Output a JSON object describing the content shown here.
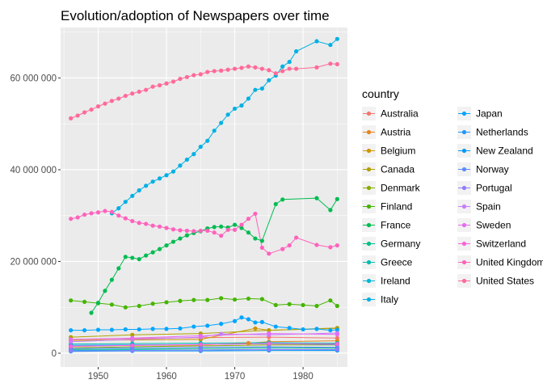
{
  "chart_data": {
    "type": "line",
    "title": "Evolution/adoption of Newspapers over time",
    "xlabel": "",
    "ylabel": "",
    "xlim": [
      1944.5,
      1986.5
    ],
    "ylim": [
      -3000000,
      71000000
    ],
    "x_ticks": [
      1950,
      1960,
      1970,
      1980
    ],
    "x_tick_labels": [
      "1950",
      "1960",
      "1970",
      "1980"
    ],
    "y_ticks": [
      0,
      20000000,
      40000000,
      60000000
    ],
    "y_tick_labels": [
      "0",
      "20 000 000",
      "40 000 000",
      "60 000 000"
    ],
    "legend_title": "country",
    "legend_position": "right",
    "grid": true,
    "series": [
      {
        "name": "Australia",
        "color": "#F8766D",
        "x": [
          1946,
          1955,
          1965,
          1975,
          1985
        ],
        "y": [
          3000000,
          3200000,
          3400000,
          3500000,
          3300000
        ]
      },
      {
        "name": "Austria",
        "color": "#E7851E",
        "x": [
          1946,
          1955,
          1965,
          1972,
          1975,
          1985
        ],
        "y": [
          1500000,
          1700000,
          1800000,
          2200000,
          2500000,
          2700000
        ]
      },
      {
        "name": "Belgium",
        "color": "#D09400",
        "x": [
          1946,
          1955,
          1965,
          1973,
          1975,
          1985
        ],
        "y": [
          2800000,
          2900000,
          3000000,
          5400000,
          5000000,
          5400000
        ]
      },
      {
        "name": "Canada",
        "color": "#B2A100",
        "x": [
          1946,
          1955,
          1965,
          1975,
          1985
        ],
        "y": [
          3500000,
          4000000,
          4300000,
          5000000,
          5500000
        ]
      },
      {
        "name": "Denmark",
        "color": "#89AC00",
        "x": [
          1946,
          1955,
          1965,
          1975,
          1985
        ],
        "y": [
          1200000,
          1400000,
          1600000,
          1800000,
          1800000
        ]
      },
      {
        "name": "Finland",
        "color": "#45B500",
        "x": [
          1946,
          1948,
          1950,
          1952,
          1954,
          1956,
          1958,
          1960,
          1962,
          1964,
          1966,
          1968,
          1970,
          1972,
          1974,
          1976,
          1978,
          1980,
          1982,
          1984,
          1985
        ],
        "y": [
          11500000,
          11200000,
          10900000,
          10600000,
          10000000,
          10300000,
          10800000,
          11100000,
          11400000,
          11600000,
          11600000,
          12000000,
          11700000,
          11900000,
          11800000,
          10500000,
          10700000,
          10500000,
          10300000,
          11500000,
          10300000
        ]
      },
      {
        "name": "France",
        "color": "#00BC51",
        "x": [
          1949,
          1950,
          1951,
          1952,
          1953,
          1954,
          1955,
          1956,
          1957,
          1958,
          1959,
          1960,
          1961,
          1962,
          1963,
          1964,
          1965,
          1966,
          1967,
          1968,
          1969,
          1970,
          1971,
          1972,
          1973,
          1974,
          1976,
          1977,
          1982,
          1984,
          1985
        ],
        "y": [
          8800000,
          11000000,
          13600000,
          16000000,
          18500000,
          21000000,
          20800000,
          20500000,
          21300000,
          22000000,
          22700000,
          23500000,
          24300000,
          25000000,
          25700000,
          26200000,
          26600000,
          27200000,
          27500000,
          27600000,
          27400000,
          28000000,
          27300000,
          26300000,
          25000000,
          24500000,
          32500000,
          33500000,
          33800000,
          31200000,
          33600000
        ]
      },
      {
        "name": "Germany",
        "color": "#00C087",
        "x": [
          1946,
          1955,
          1965,
          1975,
          1985
        ],
        "y": [
          800000,
          900000,
          1000000,
          1200000,
          1100000
        ]
      },
      {
        "name": "Greece",
        "color": "#00BDB2",
        "x": [
          1946,
          1955,
          1965,
          1975,
          1985
        ],
        "y": [
          2000000,
          2100000,
          2200000,
          2300000,
          2200000
        ]
      },
      {
        "name": "Ireland",
        "color": "#00B7D5",
        "x": [
          1946,
          1955,
          1965,
          1975,
          1985
        ],
        "y": [
          600000,
          700000,
          700000,
          800000,
          700000
        ]
      },
      {
        "name": "Italy",
        "color": "#00B0E4",
        "x": [
          1952,
          1953,
          1954,
          1955,
          1956,
          1957,
          1958,
          1959,
          1960,
          1961,
          1962,
          1963,
          1964,
          1965,
          1966,
          1967,
          1968,
          1969,
          1970,
          1971,
          1972,
          1973,
          1974,
          1975,
          1976,
          1977,
          1978,
          1979,
          1982,
          1984,
          1985
        ],
        "y": [
          30500000,
          31600000,
          33000000,
          34300000,
          35500000,
          36500000,
          37400000,
          38100000,
          38800000,
          39600000,
          40900000,
          42200000,
          43400000,
          45000000,
          46300000,
          48500000,
          50200000,
          52000000,
          53300000,
          54000000,
          55500000,
          57400000,
          57700000,
          59500000,
          60500000,
          62500000,
          63500000,
          65800000,
          68000000,
          67200000,
          68500000
        ]
      },
      {
        "name": "Japan",
        "color": "#00A5FF",
        "x": [
          1946,
          1948,
          1950,
          1952,
          1954,
          1956,
          1958,
          1960,
          1962,
          1964,
          1966,
          1968,
          1970,
          1971,
          1972,
          1973,
          1974,
          1976,
          1978,
          1980,
          1982,
          1984,
          1985
        ],
        "y": [
          5000000,
          5000000,
          5100000,
          5100000,
          5200000,
          5200000,
          5300000,
          5300000,
          5400000,
          5800000,
          6000000,
          6400000,
          7000000,
          7800000,
          7400000,
          6700000,
          6800000,
          5800000,
          5500000,
          5200000,
          5300000,
          5000000,
          5100000
        ]
      },
      {
        "name": "Netherlands",
        "color": "#1F97FF",
        "x": [
          1946,
          1955,
          1965,
          1975,
          1985
        ],
        "y": [
          1700000,
          1800000,
          1900000,
          2100000,
          1900000
        ]
      },
      {
        "name": "New Zealand",
        "color": "#0099F8",
        "x": [
          1946,
          1955,
          1965,
          1975,
          1985
        ],
        "y": [
          400000,
          500000,
          500000,
          600000,
          600000
        ]
      },
      {
        "name": "Norway",
        "color": "#5A8CFF",
        "x": [
          1946,
          1955,
          1965,
          1975,
          1985
        ],
        "y": [
          1000000,
          1200000,
          1300000,
          1400000,
          1300000
        ]
      },
      {
        "name": "Portugal",
        "color": "#8E7DFF",
        "x": [
          1946,
          1955,
          1965,
          1975,
          1985
        ],
        "y": [
          500000,
          600000,
          700000,
          800000,
          800000
        ]
      },
      {
        "name": "Spain",
        "color": "#C77CFF",
        "x": [
          1946,
          1955,
          1965,
          1968,
          1975,
          1985
        ],
        "y": [
          2500000,
          3000000,
          3500000,
          4200000,
          4000000,
          4400000
        ]
      },
      {
        "name": "Sweden",
        "color": "#E76BF3",
        "x": [
          1946,
          1955,
          1965,
          1975,
          1985
        ],
        "y": [
          3000000,
          3300000,
          3800000,
          4300000,
          4100000
        ]
      },
      {
        "name": "Switzerland",
        "color": "#FA62DB",
        "x": [
          1946,
          1955,
          1965,
          1975,
          1985
        ],
        "y": [
          1500000,
          1700000,
          1900000,
          2100000,
          2000000
        ]
      },
      {
        "name": "United Kingdom",
        "color": "#FF62BC",
        "x": [
          1946,
          1947,
          1948,
          1949,
          1950,
          1951,
          1952,
          1953,
          1954,
          1955,
          1956,
          1957,
          1958,
          1959,
          1960,
          1961,
          1962,
          1963,
          1964,
          1965,
          1966,
          1967,
          1968,
          1969,
          1970,
          1971,
          1972,
          1973,
          1974,
          1975,
          1977,
          1978,
          1979,
          1982,
          1984,
          1985
        ],
        "y": [
          29300000,
          29600000,
          30200000,
          30500000,
          30700000,
          31000000,
          30800000,
          30000000,
          29400000,
          28800000,
          28400000,
          28200000,
          27800000,
          27600000,
          27300000,
          27000000,
          26800000,
          26700000,
          26600000,
          26700000,
          26700000,
          26300000,
          25600000,
          26900000,
          26900000,
          28000000,
          29300000,
          30400000,
          23000000,
          21700000,
          22700000,
          23500000,
          25200000,
          23600000,
          23100000,
          23500000
        ]
      },
      {
        "name": "United States",
        "color": "#FF6A98",
        "x": [
          1946,
          1947,
          1948,
          1949,
          1950,
          1951,
          1952,
          1953,
          1954,
          1955,
          1956,
          1957,
          1958,
          1959,
          1960,
          1961,
          1962,
          1963,
          1964,
          1965,
          1966,
          1967,
          1968,
          1969,
          1970,
          1971,
          1972,
          1973,
          1974,
          1975,
          1976,
          1977,
          1978,
          1979,
          1982,
          1984,
          1985
        ],
        "y": [
          51200000,
          51800000,
          52500000,
          53100000,
          53800000,
          54400000,
          55000000,
          55500000,
          56100000,
          56600000,
          57000000,
          57400000,
          58100000,
          58400000,
          58800000,
          59200000,
          59800000,
          60200000,
          60600000,
          60800000,
          61300000,
          61500000,
          61600000,
          61800000,
          62000000,
          62200000,
          62500000,
          62300000,
          62000000,
          61700000,
          61000000,
          61500000,
          62000000,
          62000000,
          62300000,
          63100000,
          63000000
        ]
      }
    ]
  }
}
